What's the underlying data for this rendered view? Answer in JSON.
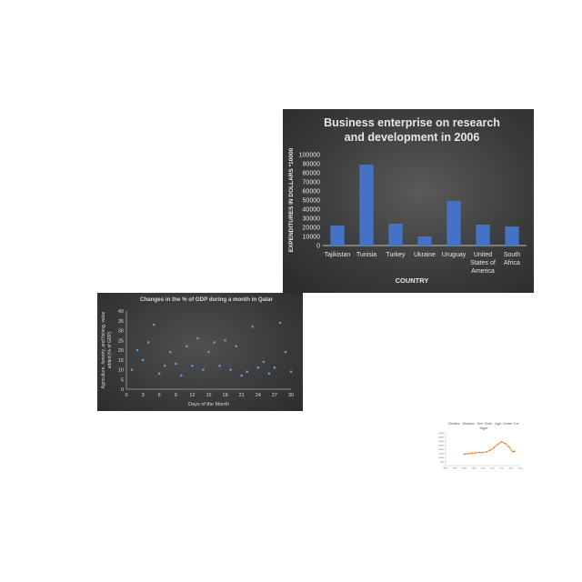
{
  "chart_data": [
    {
      "type": "bar",
      "title": "Business enterprise on research and development in 2006",
      "title_lines": [
        "Business enterprise on research",
        "and development in 2006"
      ],
      "xlabel": "COUNTRY",
      "ylabel": "EXPENDITURES IN DOLLARS  *10000",
      "categories": [
        "Tajikistan",
        "Tunisia",
        "Turkey",
        "Ukraine",
        "Uruguay",
        "United States of America",
        "South Africa"
      ],
      "category_lines": [
        [
          "Tajikistan"
        ],
        [
          "Tunisia"
        ],
        [
          "Turkey"
        ],
        [
          "Ukraine"
        ],
        [
          "Uruguay"
        ],
        [
          "United",
          "States of",
          "America"
        ],
        [
          "South",
          "Africa"
        ]
      ],
      "values": [
        22000,
        89000,
        24000,
        10000,
        49000,
        23000,
        21000
      ],
      "ylim": [
        0,
        100000
      ],
      "yticks": [
        0,
        10000,
        20000,
        30000,
        40000,
        50000,
        60000,
        70000,
        80000,
        90000,
        100000
      ],
      "grid": false,
      "colors": {
        "background": "#3a3a3a",
        "bar": "#4472c4",
        "text": "#e6e6e6"
      }
    },
    {
      "type": "scatter",
      "title": "Changes in the % of GDP during a month in Qatar",
      "xlabel": "Days of the Month",
      "ylabel": "Agriculture, forestry, and fishing, value added (% of GDP)",
      "ylabel_lines": [
        "Agriculture, forestry, and fishing, value",
        "added (% of GDP)"
      ],
      "xlim": [
        0,
        30
      ],
      "ylim": [
        0,
        40
      ],
      "xticks": [
        0,
        3,
        6,
        9,
        12,
        15,
        18,
        21,
        24,
        27,
        30
      ],
      "yticks": [
        0,
        5,
        10,
        15,
        20,
        25,
        30,
        35,
        40
      ],
      "x": [
        1,
        2,
        3,
        4,
        5,
        6,
        7,
        8,
        9,
        10,
        11,
        12,
        13,
        14,
        15,
        16,
        17,
        18,
        19,
        20,
        21,
        22,
        23,
        24,
        25,
        26,
        27,
        28,
        29,
        30
      ],
      "y": [
        10,
        20,
        15,
        24,
        33,
        8,
        12,
        19,
        13,
        7,
        22,
        12,
        26,
        10,
        19,
        24,
        12,
        25,
        10,
        22,
        7,
        9,
        32,
        11,
        14,
        8,
        11,
        34,
        19,
        9
      ],
      "grid": false,
      "colors": {
        "background": "#3a3a3a",
        "marker": "#5b9bd5",
        "text": "#d9d9d9"
      }
    },
    {
      "type": "line",
      "title": "Deaths - Malaria - Sex: Both - Age: Under 5 in Niger",
      "title_lines": [
        "Deaths - Malaria - Sex: Both - Age: Under 5 in",
        "Niger"
      ],
      "x": [
        1990,
        1992,
        1994,
        1996,
        1998,
        2000,
        2002,
        2004,
        2006,
        2008,
        2010,
        2012,
        2014,
        2016,
        2017
      ],
      "y": [
        14000,
        14500,
        15000,
        15500,
        16200,
        16000,
        16800,
        19000,
        22000,
        26000,
        29000,
        27000,
        23000,
        17000,
        17500
      ],
      "xlim": [
        1980,
        2020
      ],
      "ylim": [
        0,
        40000
      ],
      "xticks": [
        1980,
        1985,
        1990,
        1995,
        2000,
        2005,
        2010,
        2015,
        2020
      ],
      "yticks": [
        0,
        5000,
        10000,
        15000,
        20000,
        25000,
        30000,
        35000,
        40000
      ],
      "grid": false,
      "colors": {
        "line": "#ed7d31",
        "marker": "#ed7d31",
        "text": "#595959"
      }
    }
  ]
}
